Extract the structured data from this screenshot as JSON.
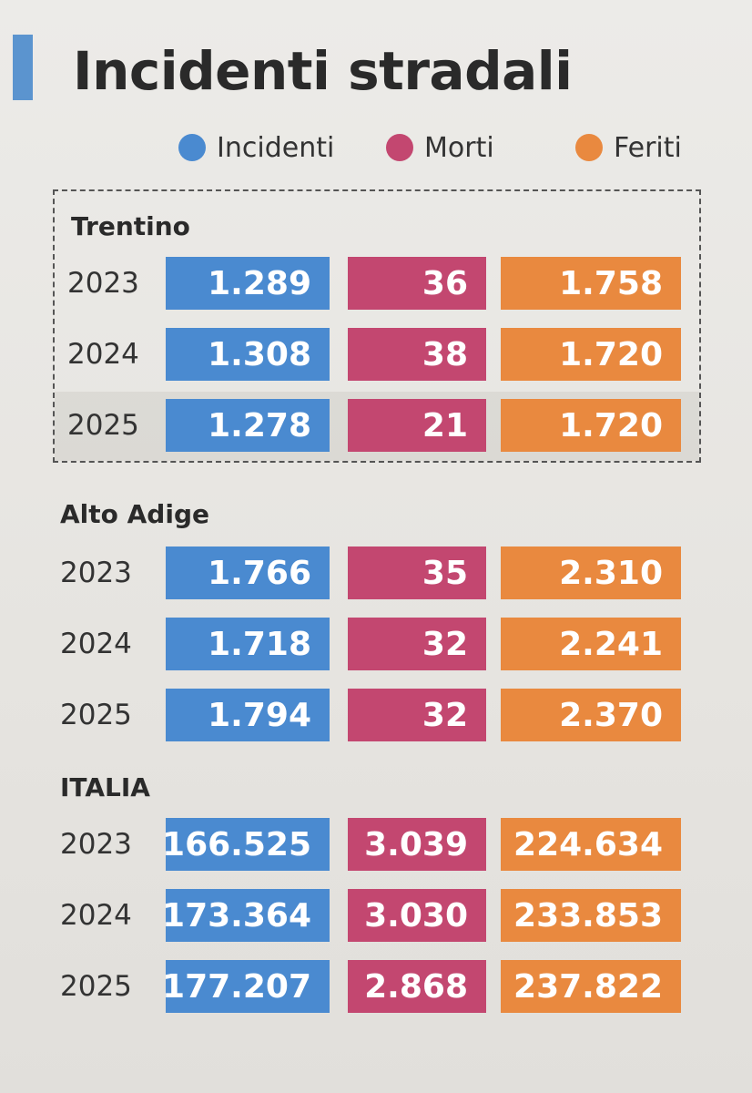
{
  "title": "Incidenti stradali",
  "colors": {
    "incidenti": "#4a8ad0",
    "morti": "#c34770",
    "feriti": "#e9893f",
    "accent": "#5b94cf"
  },
  "legend": [
    {
      "label": "Incidenti",
      "color": "#4a8ad0"
    },
    {
      "label": "Morti",
      "color": "#c34770"
    },
    {
      "label": "Feriti",
      "color": "#e9893f"
    }
  ],
  "chart_data": {
    "type": "table",
    "title": "Incidenti stradali",
    "columns": [
      "Incidenti",
      "Morti",
      "Feriti"
    ],
    "sections": [
      {
        "name": "Trentino",
        "rows": [
          {
            "year": "2023",
            "values": [
              "1.289",
              "36",
              "1.758"
            ]
          },
          {
            "year": "2024",
            "values": [
              "1.308",
              "38",
              "1.720"
            ]
          },
          {
            "year": "2025",
            "values": [
              "1.278",
              "21",
              "1.720"
            ]
          }
        ]
      },
      {
        "name": "Alto Adige",
        "rows": [
          {
            "year": "2023",
            "values": [
              "1.766",
              "35",
              "2.310"
            ]
          },
          {
            "year": "2024",
            "values": [
              "1.718",
              "32",
              "2.241"
            ]
          },
          {
            "year": "2025",
            "values": [
              "1.794",
              "32",
              "2.370"
            ]
          }
        ]
      },
      {
        "name": "ITALIA",
        "rows": [
          {
            "year": "2023",
            "values": [
              "166.525",
              "3.039",
              "224.634"
            ]
          },
          {
            "year": "2024",
            "values": [
              "173.364",
              "3.030",
              "233.853"
            ]
          },
          {
            "year": "2025",
            "values": [
              "177.207",
              "2.868",
              "237.822"
            ]
          }
        ]
      }
    ]
  }
}
